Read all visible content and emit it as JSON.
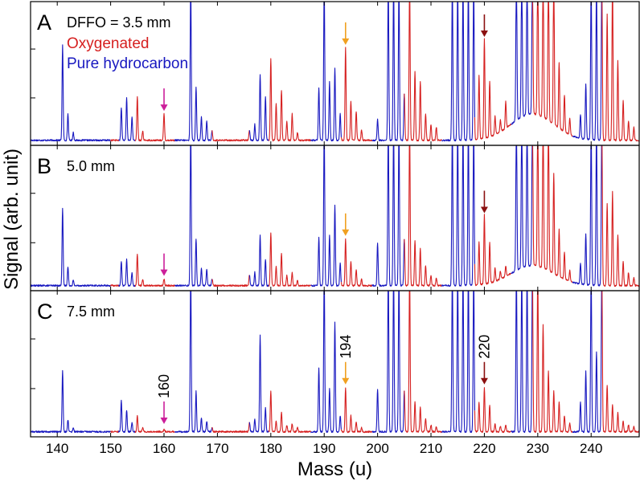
{
  "chart_data": {
    "type": "line",
    "xlabel": "Mass (u)",
    "ylabel": "Signal (arb. unit)",
    "xlim": [
      135,
      249
    ],
    "x_ticks": [
      140,
      150,
      160,
      170,
      180,
      190,
      200,
      210,
      220,
      230,
      240
    ],
    "ylim": [
      0,
      1
    ],
    "grid": false,
    "legend": {
      "placement": "top-left",
      "entries": [
        {
          "label": "Oxygenated",
          "color": "#d62020"
        },
        {
          "label": "Pure hydrocarbon",
          "color": "#1818c0"
        }
      ]
    },
    "series_colors": {
      "oxygenated": "#d62020",
      "hydrocarbon": "#1818c0"
    },
    "hydrocarbon_segments": [
      [
        135,
        150
      ],
      [
        151.5,
        154.6
      ],
      [
        162,
        169
      ],
      [
        176,
        179.6
      ],
      [
        187.5,
        193.2
      ],
      [
        199,
        205
      ],
      [
        212,
        218.2
      ],
      [
        225,
        229
      ],
      [
        236.5,
        242
      ]
    ],
    "panels": [
      {
        "letter": "A",
        "label": "DFFO = 3.5 mm",
        "peaks": [
          {
            "mass": 141,
            "value": 0.72
          },
          {
            "mass": 142,
            "value": 0.2
          },
          {
            "mass": 143,
            "value": 0.06
          },
          {
            "mass": 152,
            "value": 0.25
          },
          {
            "mass": 153,
            "value": 0.32
          },
          {
            "mass": 154,
            "value": 0.18
          },
          {
            "mass": 155,
            "value": 0.33
          },
          {
            "mass": 156,
            "value": 0.07
          },
          {
            "mass": 160,
            "value": 0.2
          },
          {
            "mass": 165,
            "value": 1.2
          },
          {
            "mass": 166,
            "value": 0.4
          },
          {
            "mass": 167,
            "value": 0.18
          },
          {
            "mass": 168,
            "value": 0.15
          },
          {
            "mass": 169,
            "value": 0.07
          },
          {
            "mass": 176,
            "value": 0.08
          },
          {
            "mass": 177,
            "value": 0.12
          },
          {
            "mass": 178,
            "value": 0.5
          },
          {
            "mass": 179,
            "value": 0.33
          },
          {
            "mass": 180,
            "value": 0.62
          },
          {
            "mass": 181,
            "value": 0.28
          },
          {
            "mass": 182,
            "value": 0.38
          },
          {
            "mass": 183,
            "value": 0.14
          },
          {
            "mass": 184,
            "value": 0.2
          },
          {
            "mass": 185,
            "value": 0.06
          },
          {
            "mass": 189,
            "value": 0.4
          },
          {
            "mass": 190,
            "value": 1.2
          },
          {
            "mass": 191,
            "value": 0.44
          },
          {
            "mass": 192,
            "value": 0.55
          },
          {
            "mass": 193,
            "value": 0.2
          },
          {
            "mass": 194,
            "value": 0.7
          },
          {
            "mass": 195,
            "value": 0.3
          },
          {
            "mass": 196,
            "value": 0.22
          },
          {
            "mass": 197,
            "value": 0.08
          },
          {
            "mass": 200,
            "value": 0.16
          },
          {
            "mass": 202,
            "value": 1.2
          },
          {
            "mass": 203,
            "value": 1.2
          },
          {
            "mass": 204,
            "value": 1.2
          },
          {
            "mass": 205,
            "value": 0.35
          },
          {
            "mass": 206,
            "value": 1.2
          },
          {
            "mass": 207,
            "value": 0.52
          },
          {
            "mass": 208,
            "value": 0.45
          },
          {
            "mass": 209,
            "value": 0.2
          },
          {
            "mass": 210,
            "value": 0.12
          },
          {
            "mass": 211,
            "value": 0.1
          },
          {
            "mass": 214,
            "value": 1.2
          },
          {
            "mass": 215,
            "value": 1.2
          },
          {
            "mass": 216,
            "value": 1.2
          },
          {
            "mass": 217,
            "value": 1.2
          },
          {
            "mass": 218,
            "value": 1.2
          },
          {
            "mass": 219,
            "value": 0.48
          },
          {
            "mass": 220,
            "value": 0.76
          },
          {
            "mass": 221,
            "value": 0.42
          },
          {
            "mass": 222,
            "value": 0.14
          },
          {
            "mass": 223,
            "value": 0.09
          },
          {
            "mass": 224,
            "value": 0.2
          },
          {
            "mass": 226,
            "value": 1.2
          },
          {
            "mass": 227,
            "value": 1.2
          },
          {
            "mass": 228,
            "value": 1.2
          },
          {
            "mass": 229,
            "value": 1.2
          },
          {
            "mass": 230,
            "value": 1.2
          },
          {
            "mass": 231,
            "value": 1.2
          },
          {
            "mass": 232,
            "value": 1.2
          },
          {
            "mass": 233,
            "value": 1.2
          },
          {
            "mass": 234,
            "value": 0.5
          },
          {
            "mass": 235,
            "value": 0.28
          },
          {
            "mass": 236,
            "value": 0.12
          },
          {
            "mass": 238,
            "value": 0.18
          },
          {
            "mass": 239,
            "value": 0.42
          },
          {
            "mass": 240,
            "value": 1.2
          },
          {
            "mass": 241,
            "value": 1.2
          },
          {
            "mass": 242,
            "value": 1.2
          },
          {
            "mass": 243,
            "value": 0.95
          },
          {
            "mass": 244,
            "value": 1.2
          },
          {
            "mass": 245,
            "value": 0.6
          },
          {
            "mass": 246,
            "value": 0.3
          },
          {
            "mass": 247,
            "value": 0.15
          },
          {
            "mass": 248,
            "value": 0.1
          }
        ],
        "hump": {
          "center": 229,
          "width": 8,
          "height": 0.2
        }
      },
      {
        "letter": "B",
        "label": "5.0 mm",
        "peaks": [
          {
            "mass": 141,
            "value": 0.58
          },
          {
            "mass": 142,
            "value": 0.14
          },
          {
            "mass": 143,
            "value": 0.04
          },
          {
            "mass": 152,
            "value": 0.18
          },
          {
            "mass": 153,
            "value": 0.2
          },
          {
            "mass": 154,
            "value": 0.1
          },
          {
            "mass": 155,
            "value": 0.24
          },
          {
            "mass": 156,
            "value": 0.05
          },
          {
            "mass": 160,
            "value": 0.05
          },
          {
            "mass": 165,
            "value": 1.2
          },
          {
            "mass": 166,
            "value": 0.35
          },
          {
            "mass": 167,
            "value": 0.13
          },
          {
            "mass": 168,
            "value": 0.12
          },
          {
            "mass": 169,
            "value": 0.05
          },
          {
            "mass": 176,
            "value": 0.08
          },
          {
            "mass": 177,
            "value": 0.1
          },
          {
            "mass": 178,
            "value": 0.38
          },
          {
            "mass": 179,
            "value": 0.2
          },
          {
            "mass": 180,
            "value": 0.4
          },
          {
            "mass": 181,
            "value": 0.14
          },
          {
            "mass": 182,
            "value": 0.24
          },
          {
            "mass": 183,
            "value": 0.08
          },
          {
            "mass": 184,
            "value": 0.1
          },
          {
            "mass": 185,
            "value": 0.04
          },
          {
            "mass": 189,
            "value": 0.36
          },
          {
            "mass": 190,
            "value": 1.2
          },
          {
            "mass": 191,
            "value": 0.38
          },
          {
            "mass": 192,
            "value": 0.6
          },
          {
            "mass": 193,
            "value": 0.17
          },
          {
            "mass": 194,
            "value": 0.35
          },
          {
            "mass": 195,
            "value": 0.18
          },
          {
            "mass": 196,
            "value": 0.12
          },
          {
            "mass": 197,
            "value": 0.05
          },
          {
            "mass": 200,
            "value": 0.32
          },
          {
            "mass": 202,
            "value": 1.2
          },
          {
            "mass": 203,
            "value": 1.2
          },
          {
            "mass": 204,
            "value": 1.2
          },
          {
            "mass": 205,
            "value": 0.35
          },
          {
            "mass": 206,
            "value": 1.2
          },
          {
            "mass": 207,
            "value": 0.34
          },
          {
            "mass": 208,
            "value": 0.28
          },
          {
            "mass": 209,
            "value": 0.15
          },
          {
            "mass": 210,
            "value": 0.08
          },
          {
            "mass": 211,
            "value": 0.06
          },
          {
            "mass": 214,
            "value": 1.2
          },
          {
            "mass": 215,
            "value": 1.2
          },
          {
            "mass": 216,
            "value": 1.2
          },
          {
            "mass": 217,
            "value": 1.2
          },
          {
            "mass": 218,
            "value": 1.2
          },
          {
            "mass": 219,
            "value": 0.32
          },
          {
            "mass": 220,
            "value": 0.52
          },
          {
            "mass": 221,
            "value": 0.3
          },
          {
            "mass": 222,
            "value": 0.1
          },
          {
            "mass": 223,
            "value": 0.06
          },
          {
            "mass": 224,
            "value": 0.08
          },
          {
            "mass": 226,
            "value": 1.2
          },
          {
            "mass": 227,
            "value": 1.2
          },
          {
            "mass": 228,
            "value": 1.2
          },
          {
            "mass": 229,
            "value": 1.2
          },
          {
            "mass": 230,
            "value": 1.2
          },
          {
            "mass": 231,
            "value": 1.2
          },
          {
            "mass": 232,
            "value": 1.2
          },
          {
            "mass": 233,
            "value": 0.75
          },
          {
            "mass": 234,
            "value": 0.35
          },
          {
            "mass": 235,
            "value": 0.2
          },
          {
            "mass": 236,
            "value": 0.08
          },
          {
            "mass": 238,
            "value": 0.15
          },
          {
            "mass": 239,
            "value": 0.38
          },
          {
            "mass": 240,
            "value": 1.2
          },
          {
            "mass": 241,
            "value": 1.2
          },
          {
            "mass": 242,
            "value": 1.2
          },
          {
            "mass": 243,
            "value": 0.62
          },
          {
            "mass": 244,
            "value": 0.7
          },
          {
            "mass": 245,
            "value": 0.38
          },
          {
            "mass": 246,
            "value": 0.18
          },
          {
            "mass": 247,
            "value": 0.1
          },
          {
            "mass": 248,
            "value": 0.06
          }
        ],
        "hump": {
          "center": 229,
          "width": 8,
          "height": 0.15
        }
      },
      {
        "letter": "C",
        "label": "7.5 mm",
        "peaks": [
          {
            "mass": 141,
            "value": 0.45
          },
          {
            "mass": 142,
            "value": 0.09
          },
          {
            "mass": 143,
            "value": 0.03
          },
          {
            "mass": 152,
            "value": 0.23
          },
          {
            "mass": 153,
            "value": 0.16
          },
          {
            "mass": 154,
            "value": 0.07
          },
          {
            "mass": 155,
            "value": 0.12
          },
          {
            "mass": 156,
            "value": 0.03
          },
          {
            "mass": 160,
            "value": 0.02
          },
          {
            "mass": 165,
            "value": 1.2
          },
          {
            "mass": 166,
            "value": 0.3
          },
          {
            "mass": 167,
            "value": 0.1
          },
          {
            "mass": 168,
            "value": 0.08
          },
          {
            "mass": 169,
            "value": 0.03
          },
          {
            "mass": 176,
            "value": 0.07
          },
          {
            "mass": 177,
            "value": 0.09
          },
          {
            "mass": 178,
            "value": 0.72
          },
          {
            "mass": 179,
            "value": 0.18
          },
          {
            "mass": 180,
            "value": 0.3
          },
          {
            "mass": 181,
            "value": 0.08
          },
          {
            "mass": 182,
            "value": 0.14
          },
          {
            "mass": 183,
            "value": 0.05
          },
          {
            "mass": 184,
            "value": 0.06
          },
          {
            "mass": 185,
            "value": 0.03
          },
          {
            "mass": 189,
            "value": 0.48
          },
          {
            "mass": 190,
            "value": 1.2
          },
          {
            "mass": 191,
            "value": 0.32
          },
          {
            "mass": 192,
            "value": 0.82
          },
          {
            "mass": 193,
            "value": 0.12
          },
          {
            "mass": 194,
            "value": 0.33
          },
          {
            "mass": 195,
            "value": 0.12
          },
          {
            "mass": 196,
            "value": 0.07
          },
          {
            "mass": 197,
            "value": 0.03
          },
          {
            "mass": 200,
            "value": 0.32
          },
          {
            "mass": 202,
            "value": 1.2
          },
          {
            "mass": 203,
            "value": 1.2
          },
          {
            "mass": 204,
            "value": 1.2
          },
          {
            "mass": 205,
            "value": 0.3
          },
          {
            "mass": 206,
            "value": 1.2
          },
          {
            "mass": 207,
            "value": 0.22
          },
          {
            "mass": 208,
            "value": 0.18
          },
          {
            "mass": 209,
            "value": 0.1
          },
          {
            "mass": 210,
            "value": 0.05
          },
          {
            "mass": 211,
            "value": 0.04
          },
          {
            "mass": 214,
            "value": 1.2
          },
          {
            "mass": 215,
            "value": 1.2
          },
          {
            "mass": 216,
            "value": 1.2
          },
          {
            "mass": 217,
            "value": 1.2
          },
          {
            "mass": 218,
            "value": 1.2
          },
          {
            "mass": 219,
            "value": 0.22
          },
          {
            "mass": 220,
            "value": 0.33
          },
          {
            "mass": 221,
            "value": 0.2
          },
          {
            "mass": 222,
            "value": 0.06
          },
          {
            "mass": 223,
            "value": 0.04
          },
          {
            "mass": 224,
            "value": 0.05
          },
          {
            "mass": 226,
            "value": 1.2
          },
          {
            "mass": 227,
            "value": 1.2
          },
          {
            "mass": 228,
            "value": 1.2
          },
          {
            "mass": 229,
            "value": 1.2
          },
          {
            "mass": 230,
            "value": 1.2
          },
          {
            "mass": 231,
            "value": 0.8
          },
          {
            "mass": 232,
            "value": 0.45
          },
          {
            "mass": 233,
            "value": 0.3
          },
          {
            "mass": 234,
            "value": 0.22
          },
          {
            "mass": 235,
            "value": 0.12
          },
          {
            "mass": 236,
            "value": 0.06
          },
          {
            "mass": 238,
            "value": 0.22
          },
          {
            "mass": 239,
            "value": 0.45
          },
          {
            "mass": 240,
            "value": 1.2
          },
          {
            "mass": 241,
            "value": 0.6
          },
          {
            "mass": 242,
            "value": 1.2
          },
          {
            "mass": 243,
            "value": 0.35
          },
          {
            "mass": 244,
            "value": 0.2
          },
          {
            "mass": 245,
            "value": 0.14
          },
          {
            "mass": 246,
            "value": 0.08
          },
          {
            "mass": 247,
            "value": 0.05
          },
          {
            "mass": 248,
            "value": 0.04
          }
        ],
        "hump": {
          "center": 229,
          "width": 8,
          "height": 0.0
        }
      }
    ],
    "markers": [
      {
        "mass": 160,
        "color": "#cc1f9a",
        "label": "160"
      },
      {
        "mass": 194,
        "color": "#f0a020",
        "label": "194"
      },
      {
        "mass": 220,
        "color": "#8b1010",
        "label": "220"
      }
    ]
  }
}
